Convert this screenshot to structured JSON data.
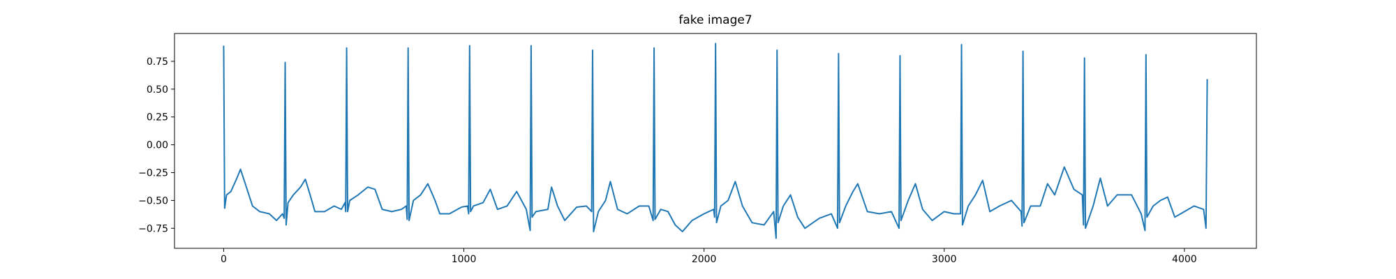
{
  "chart_data": {
    "type": "line",
    "title": "fake image7",
    "x": [
      0,
      4,
      12,
      30,
      55,
      70,
      90,
      120,
      150,
      190,
      220,
      245,
      252,
      256,
      260,
      268,
      290,
      320,
      340,
      360,
      380,
      420,
      460,
      490,
      505,
      508,
      512,
      516,
      525,
      560,
      600,
      630,
      660,
      700,
      740,
      760,
      764,
      768,
      772,
      790,
      820,
      850,
      880,
      900,
      940,
      990,
      1015,
      1020,
      1024,
      1028,
      1040,
      1080,
      1110,
      1140,
      1180,
      1220,
      1260,
      1276,
      1280,
      1284,
      1300,
      1350,
      1365,
      1390,
      1420,
      1470,
      1510,
      1532,
      1536,
      1540,
      1560,
      1590,
      1610,
      1640,
      1680,
      1730,
      1770,
      1788,
      1792,
      1796,
      1820,
      1850,
      1880,
      1910,
      1950,
      2000,
      2040,
      2044,
      2048,
      2052,
      2070,
      2100,
      2130,
      2160,
      2200,
      2250,
      2290,
      2300,
      2304,
      2308,
      2330,
      2360,
      2390,
      2420,
      2480,
      2530,
      2556,
      2560,
      2564,
      2590,
      2620,
      2640,
      2680,
      2730,
      2780,
      2812,
      2816,
      2820,
      2850,
      2880,
      2910,
      2950,
      3000,
      3040,
      3068,
      3072,
      3076,
      3100,
      3130,
      3160,
      3190,
      3230,
      3280,
      3320,
      3324,
      3328,
      3332,
      3360,
      3400,
      3430,
      3460,
      3500,
      3540,
      3575,
      3580,
      3584,
      3588,
      3620,
      3650,
      3680,
      3720,
      3780,
      3820,
      3836,
      3840,
      3844,
      3870,
      3900,
      3930,
      3960,
      4000,
      4040,
      4080,
      4090,
      4095
    ],
    "series": [
      {
        "color": "#1f77b4",
        "values": [
          0.89,
          -0.57,
          -0.45,
          -0.42,
          -0.3,
          -0.22,
          -0.35,
          -0.55,
          -0.6,
          -0.62,
          -0.68,
          -0.62,
          -0.66,
          0.74,
          -0.72,
          -0.52,
          -0.45,
          -0.38,
          -0.31,
          -0.45,
          -0.6,
          -0.6,
          -0.55,
          -0.58,
          -0.52,
          -0.6,
          0.87,
          -0.6,
          -0.5,
          -0.45,
          -0.38,
          -0.4,
          -0.58,
          -0.6,
          -0.58,
          -0.55,
          -0.67,
          0.87,
          -0.68,
          -0.5,
          -0.45,
          -0.35,
          -0.5,
          -0.62,
          -0.62,
          -0.56,
          -0.55,
          -0.62,
          0.89,
          -0.6,
          -0.55,
          -0.52,
          -0.4,
          -0.58,
          -0.55,
          -0.42,
          -0.58,
          -0.77,
          0.89,
          -0.65,
          -0.6,
          -0.58,
          -0.38,
          -0.55,
          -0.68,
          -0.56,
          -0.55,
          -0.6,
          0.85,
          -0.78,
          -0.6,
          -0.5,
          -0.33,
          -0.58,
          -0.62,
          -0.55,
          -0.55,
          -0.68,
          0.87,
          -0.67,
          -0.58,
          -0.6,
          -0.72,
          -0.78,
          -0.68,
          -0.62,
          -0.58,
          -0.65,
          0.91,
          -0.7,
          -0.55,
          -0.5,
          -0.33,
          -0.55,
          -0.7,
          -0.72,
          -0.6,
          -0.84,
          0.85,
          -0.7,
          -0.55,
          -0.45,
          -0.65,
          -0.75,
          -0.66,
          -0.62,
          -0.75,
          0.82,
          -0.7,
          -0.55,
          -0.42,
          -0.35,
          -0.6,
          -0.62,
          -0.6,
          -0.75,
          0.8,
          -0.68,
          -0.5,
          -0.35,
          -0.58,
          -0.68,
          -0.6,
          -0.62,
          -0.62,
          0.9,
          -0.72,
          -0.55,
          -0.45,
          -0.32,
          -0.6,
          -0.55,
          -0.5,
          -0.6,
          -0.73,
          0.84,
          -0.7,
          -0.55,
          -0.55,
          -0.35,
          -0.45,
          -0.2,
          -0.4,
          -0.45,
          -0.72,
          0.78,
          -0.75,
          -0.55,
          -0.3,
          -0.55,
          -0.45,
          -0.45,
          -0.62,
          -0.77,
          0.81,
          -0.65,
          -0.55,
          -0.5,
          -0.47,
          -0.65,
          -0.6,
          -0.55,
          -0.58,
          -0.75,
          0.59
        ]
      }
    ],
    "xlim": [
      -204.75,
      4299.75
    ],
    "ylim": [
      -0.93,
      1.0
    ],
    "xticks": [
      0,
      1000,
      2000,
      3000,
      4000
    ],
    "yticks": [
      {
        "value": 0.75,
        "label": "0.75"
      },
      {
        "value": 0.5,
        "label": "0.50"
      },
      {
        "value": 0.25,
        "label": "0.25"
      },
      {
        "value": 0,
        "label": "0.00"
      },
      {
        "value": -0.25,
        "label": "−0.25"
      },
      {
        "value": -0.5,
        "label": "−0.50"
      },
      {
        "value": -0.75,
        "label": "−0.75"
      }
    ]
  }
}
